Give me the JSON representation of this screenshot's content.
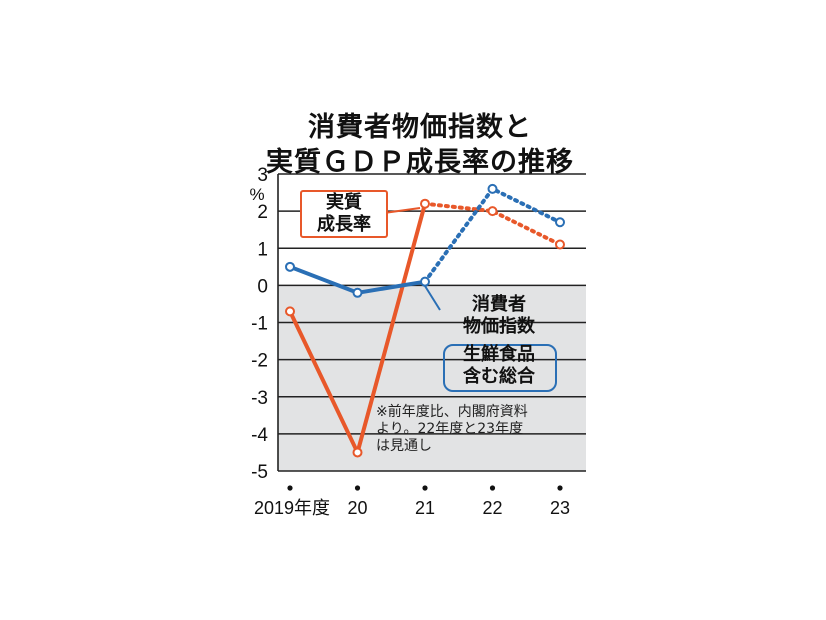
{
  "chart_data": {
    "type": "line",
    "title_line1": "消費者物価指数と",
    "title_line2": "実質ＧＤＰ成長率の推移",
    "y_unit": "%",
    "ylim": [
      -5,
      3
    ],
    "y_ticks": [
      "3",
      "2",
      "1",
      "0",
      "-1",
      "-2",
      "-3",
      "-4",
      "-5"
    ],
    "y_tick_values": [
      3,
      2,
      1,
      0,
      -1,
      -2,
      -3,
      -4,
      -5
    ],
    "categories": [
      "2019年度",
      "20",
      "21",
      "22",
      "23"
    ],
    "forecast_from_index": 2,
    "series": [
      {
        "name_line1": "実質",
        "name_line2": "成長率",
        "color": "#e8582a",
        "values": [
          -0.7,
          -4.5,
          2.2,
          2.0,
          1.1
        ]
      },
      {
        "name_line1": "消費者",
        "name_line2": "物価指数",
        "name_sub1": "生鮮食品",
        "name_sub2": "含む総合",
        "color": "#2a6fb5",
        "values": [
          0.5,
          -0.2,
          0.1,
          2.6,
          1.7
        ]
      }
    ],
    "note_line1": "※前年度比、内閣府資料",
    "note_line2": "より。22年度と23年度",
    "note_line3": "は見通し",
    "grid": true
  }
}
